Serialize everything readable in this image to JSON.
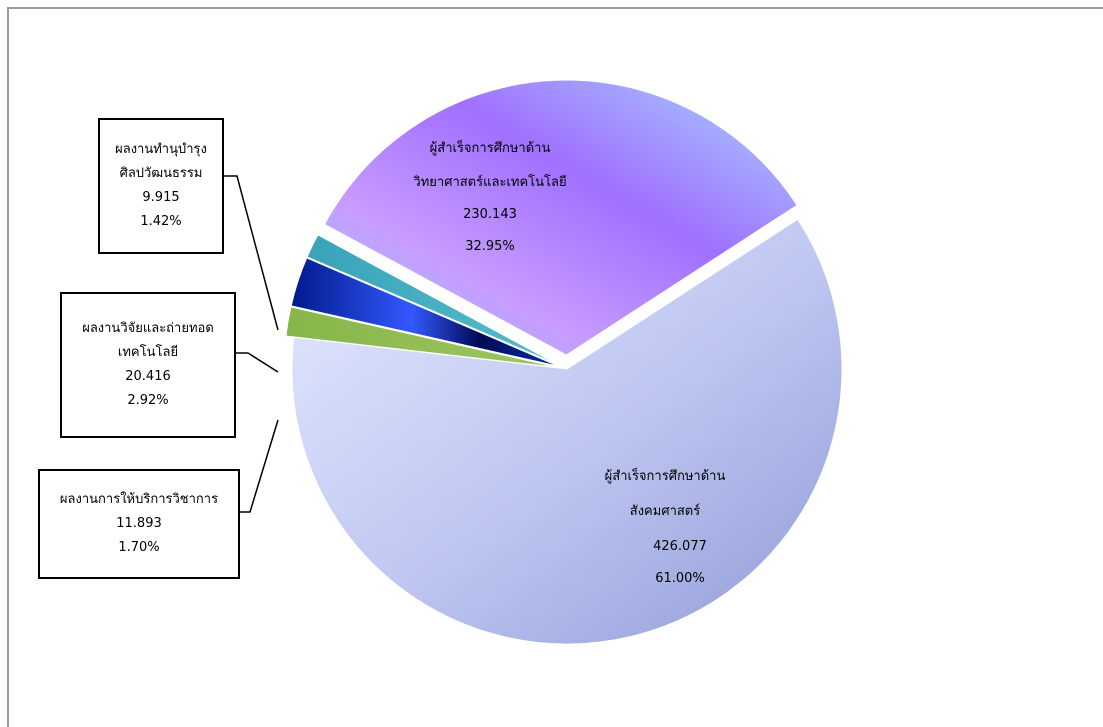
{
  "chart_data": {
    "type": "pie",
    "slices": [
      {
        "label_line1": "ผู้สำเร็จการศึกษาด้าน",
        "label_line2": "สังคมศาสตร์",
        "value": "426.077",
        "percent": "61.00%",
        "pct": 61.0,
        "color": "#aeb8e6"
      },
      {
        "label_line1": "ผลงานการให้บริการวิชาการ",
        "label_line2": "",
        "value": "11.893",
        "percent": "1.70%",
        "pct": 1.7,
        "color": "#8bb550"
      },
      {
        "label_line1": "ผลงานวิจัยและถ่ายทอด",
        "label_line2": "เทคโนโลยี",
        "value": "20.416",
        "percent": "2.92%",
        "pct": 2.92,
        "color": "#0a2aa8"
      },
      {
        "label_line1": "ผลงานทำนุบำรุง",
        "label_line2": "ศิลปวัฒนธรรม",
        "value": "9.915",
        "percent": "1.42%",
        "pct": 1.42,
        "color": "#3ea9bd"
      },
      {
        "label_line1": "ผู้สำเร็จการศึกษาด้าน",
        "label_line2": "วิทยาศาสตร์และเทคโนโลยี",
        "value": "230.143",
        "percent": "32.95%",
        "pct": 32.95,
        "color": "#b28cf2"
      }
    ]
  }
}
